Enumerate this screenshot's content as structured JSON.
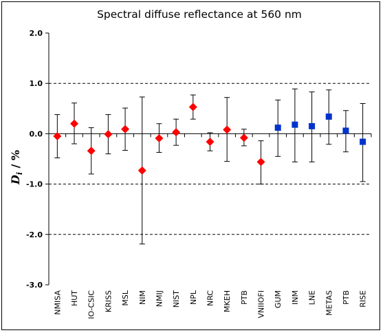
{
  "chart_data": {
    "type": "scatter",
    "title": "Spectral diffuse reflectance at 560 nm",
    "ylabel_main": "D",
    "ylabel_sub": "i",
    "ylabel_unit": " / %",
    "ylim": [
      -3.0,
      2.0
    ],
    "yticks": [
      "2.0",
      "1.0",
      "0.0",
      "-1.0",
      "-2.0",
      "-3.0"
    ],
    "ytick_values": [
      2.0,
      1.0,
      0.0,
      -1.0,
      -2.0,
      -3.0
    ],
    "gridlines": [
      1.0,
      -1.0,
      -2.0
    ],
    "categories": [
      "NMISA",
      "HUT",
      "IO-CSIC",
      "KRISS",
      "MSL",
      "NIM",
      "NMIJ",
      "NIST",
      "NPL",
      "NRC",
      "MKEH",
      "PTB",
      "VNIIOFI",
      "GUM",
      "INM",
      "LNE",
      "METAS",
      "PTB",
      "RISE"
    ],
    "series": [
      {
        "marker": "diamond",
        "color": "#ff0000",
        "points": [
          {
            "x": "NMISA",
            "y": -0.05,
            "err_low": -0.48,
            "err_high": 0.38
          },
          {
            "x": "HUT",
            "y": 0.2,
            "err_low": -0.2,
            "err_high": 0.61
          },
          {
            "x": "IO-CSIC",
            "y": -0.34,
            "err_low": -0.8,
            "err_high": 0.12
          },
          {
            "x": "KRISS",
            "y": -0.01,
            "err_low": -0.4,
            "err_high": 0.38
          },
          {
            "x": "MSL",
            "y": 0.09,
            "err_low": -0.33,
            "err_high": 0.51
          },
          {
            "x": "NIM",
            "y": -0.73,
            "err_low": -2.19,
            "err_high": 0.73
          },
          {
            "x": "NMIJ",
            "y": -0.09,
            "err_low": -0.37,
            "err_high": 0.2
          },
          {
            "x": "NIST",
            "y": 0.03,
            "err_low": -0.23,
            "err_high": 0.29
          },
          {
            "x": "NPL",
            "y": 0.53,
            "err_low": 0.29,
            "err_high": 0.77
          },
          {
            "x": "NRC",
            "y": -0.16,
            "err_low": -0.34,
            "err_high": 0.02
          },
          {
            "x": "MKEH",
            "y": 0.08,
            "err_low": -0.55,
            "err_high": 0.72
          },
          {
            "x": "PTB",
            "y": -0.08,
            "err_low": -0.24,
            "err_high": 0.09
          },
          {
            "x": "VNIIOFI",
            "y": -0.56,
            "err_low": -1.0,
            "err_high": -0.14
          }
        ]
      },
      {
        "marker": "square",
        "color": "#0033cc",
        "points": [
          {
            "x": "GUM",
            "y": 0.12,
            "err_low": -0.45,
            "err_high": 0.67
          },
          {
            "x": "INM",
            "y": 0.18,
            "err_low": -0.56,
            "err_high": 0.89
          },
          {
            "x": "LNE",
            "y": 0.15,
            "err_low": -0.56,
            "err_high": 0.83
          },
          {
            "x": "METAS",
            "y": 0.34,
            "err_low": -0.21,
            "err_high": 0.87
          },
          {
            "x": "PTB",
            "y": 0.06,
            "err_low": -0.36,
            "err_high": 0.46
          },
          {
            "x": "RISE",
            "y": -0.16,
            "err_low": -0.95,
            "err_high": 0.6
          }
        ]
      }
    ]
  }
}
